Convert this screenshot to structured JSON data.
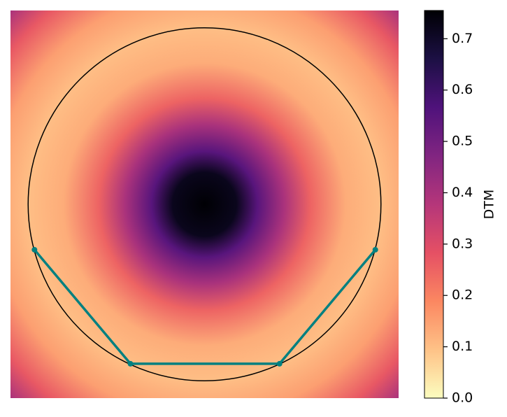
{
  "chart_data": {
    "type": "heatmap",
    "xlim": [
      -1.1,
      1.1
    ],
    "ylim": [
      -1.1,
      1.1
    ],
    "heatmap": {
      "radii": [
        0,
        0.18,
        0.3,
        0.45,
        0.6,
        0.8,
        1.0,
        1.2,
        1.4,
        1.556
      ],
      "values": [
        0.76,
        0.72,
        0.55,
        0.4,
        0.25,
        0.13,
        0.1,
        0.15,
        0.27,
        0.4
      ]
    },
    "colormap": [
      "#fcfdbf",
      "#fec287",
      "#fb8761",
      "#e55064",
      "#b5367a",
      "#812581",
      "#4f127b",
      "#1c1044",
      "#000004"
    ],
    "circle": {
      "cx": 0,
      "cy": 0,
      "r": 1,
      "color": "#000000"
    },
    "polyline": {
      "color": "#008080",
      "x": [
        -0.964,
        -0.42,
        0.425,
        0.968
      ],
      "y": [
        -0.258,
        -0.905,
        -0.905,
        -0.258
      ]
    },
    "colorbar": {
      "label": "DTM",
      "clim": [
        0,
        0.755
      ],
      "ticks": [
        {
          "value": 0,
          "label": "0.0"
        },
        0.1,
        0.2,
        0.3,
        0.4,
        0.5,
        0.6,
        0.7
      ]
    }
  }
}
